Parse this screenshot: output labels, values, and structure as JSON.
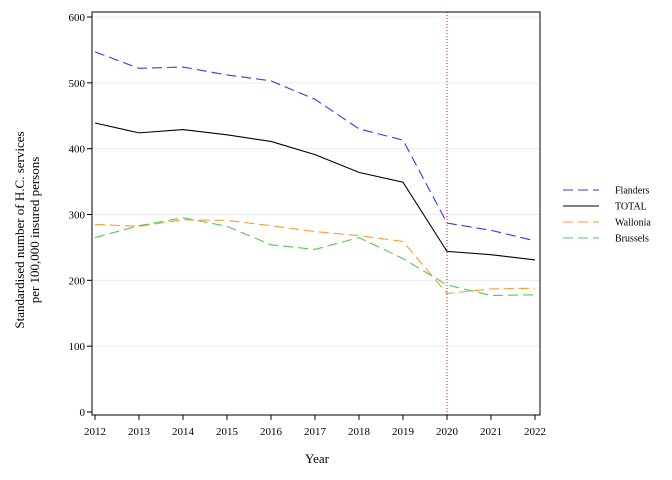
{
  "chart_data": {
    "type": "line",
    "x": [
      2012,
      2013,
      2014,
      2015,
      2016,
      2017,
      2018,
      2019,
      2020,
      2021,
      2022
    ],
    "xlabel": "Year",
    "ylabel_lines": [
      "Standardised number of H.C. services",
      "per 100,000 insured persons"
    ],
    "xlim": [
      2012,
      2022
    ],
    "ylim": [
      0,
      600
    ],
    "yticks": [
      0,
      100,
      200,
      300,
      400,
      500,
      600
    ],
    "grid": "horizontal",
    "reference_line": {
      "x": 2020,
      "color": "#e0403a",
      "style": "dotted"
    },
    "legend_position": "right",
    "series": [
      {
        "name": "Flanders",
        "color": "#3a3ae6",
        "dash": "10,5",
        "values": [
          547,
          522,
          524,
          512,
          503,
          475,
          430,
          413,
          287,
          276,
          260
        ]
      },
      {
        "name": "TOTAL",
        "color": "#000000",
        "dash": "",
        "values": [
          439,
          424,
          429,
          421,
          411,
          391,
          364,
          349,
          244,
          239,
          231
        ]
      },
      {
        "name": "Wallonia",
        "color": "#ff9a2e",
        "dash": "10,5",
        "values": [
          285,
          282,
          292,
          291,
          283,
          274,
          268,
          259,
          180,
          187,
          188
        ]
      },
      {
        "name": "Brussels",
        "color": "#55c855",
        "dash": "10,5",
        "values": [
          265,
          283,
          295,
          282,
          254,
          247,
          265,
          233,
          193,
          177,
          178
        ]
      }
    ]
  }
}
